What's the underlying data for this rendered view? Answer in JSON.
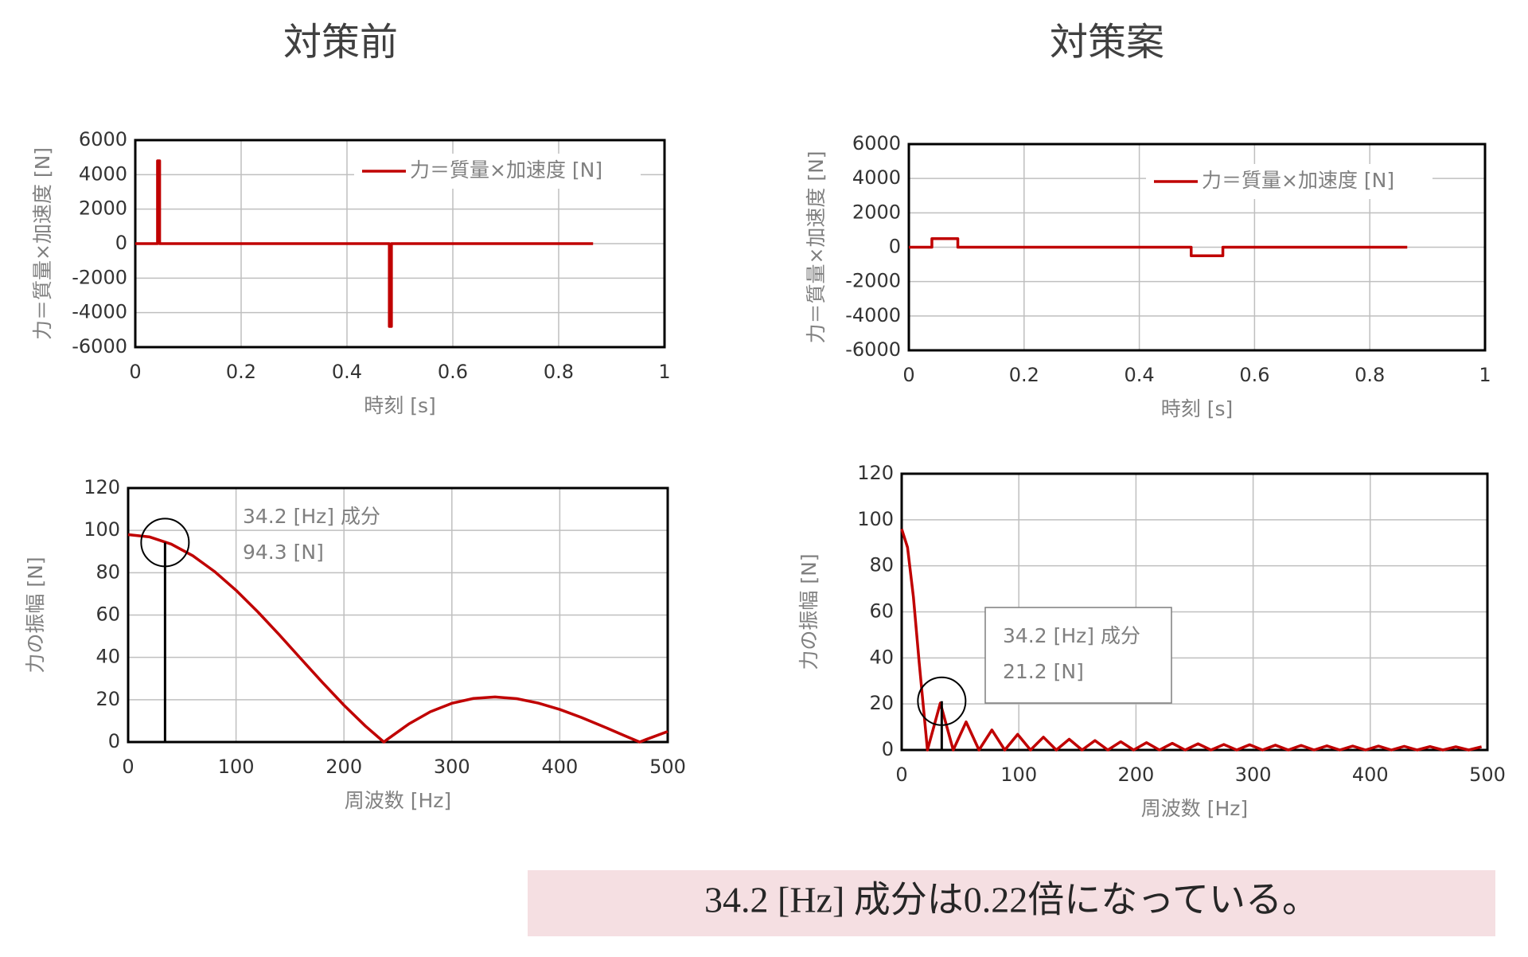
{
  "headings": [
    "対策前",
    "対策案"
  ],
  "note": "34.2 [Hz] 成分は0.22倍になっている。",
  "chart_data": [
    {
      "type": "line",
      "xlabel": "時刻 [s]",
      "ylabel": "力＝質量×加速度 [N]",
      "xlim": [
        0,
        1
      ],
      "xticks": [
        0,
        0.2,
        0.4,
        0.6,
        0.8,
        1
      ],
      "ylim": [
        -6000,
        6000
      ],
      "yticks": [
        -6000,
        -4000,
        -2000,
        0,
        2000,
        4000,
        6000
      ],
      "grid": true,
      "legend": "upper right",
      "x": [
        0,
        0.042,
        0.042,
        0.046,
        0.046,
        0.48,
        0.48,
        0.484,
        0.484,
        0.865
      ],
      "series": [
        {
          "name": "力＝質量×加速度 [N]",
          "color": "#c00000",
          "values": [
            0,
            0,
            4800,
            4800,
            0,
            0,
            -4800,
            -4800,
            0,
            0
          ]
        }
      ]
    },
    {
      "type": "line",
      "xlabel": "時刻 [s]",
      "ylabel": "力＝質量×加速度 [N]",
      "xlim": [
        0,
        1
      ],
      "xticks": [
        0,
        0.2,
        0.4,
        0.6,
        0.8,
        1
      ],
      "ylim": [
        -6000,
        6000
      ],
      "yticks": [
        -6000,
        -4000,
        -2000,
        0,
        2000,
        4000,
        6000
      ],
      "grid": true,
      "legend": "upper right",
      "x": [
        0,
        0.04,
        0.04,
        0.085,
        0.085,
        0.49,
        0.49,
        0.545,
        0.545,
        0.865
      ],
      "series": [
        {
          "name": "力＝質量×加速度 [N]",
          "color": "#c00000",
          "values": [
            0,
            0,
            500,
            500,
            0,
            0,
            -500,
            -500,
            0,
            0
          ]
        }
      ]
    },
    {
      "type": "line",
      "xlabel": "周波数 [Hz]",
      "ylabel": "力の振幅 [N]",
      "xlim": [
        0,
        500
      ],
      "xticks": [
        0,
        100,
        200,
        300,
        400,
        500
      ],
      "ylim": [
        0,
        120
      ],
      "yticks": [
        0,
        20,
        40,
        60,
        80,
        100,
        120
      ],
      "grid": true,
      "x": [
        0,
        20,
        40,
        60,
        80,
        100,
        120,
        140,
        160,
        180,
        200,
        220,
        237,
        240,
        260,
        280,
        300,
        320,
        340,
        360,
        380,
        400,
        420,
        440,
        460,
        474,
        480,
        500
      ],
      "series": [
        {
          "color": "#c00000",
          "values": [
            98,
            96.9,
            93.5,
            88.0,
            80.6,
            71.7,
            61.6,
            50.7,
            39.4,
            28.2,
            17.4,
            7.5,
            0,
            1.2,
            8.5,
            14.3,
            18.3,
            20.6,
            21.3,
            20.5,
            18.4,
            15.4,
            11.6,
            7.4,
            3.0,
            0,
            1.2,
            5.0
          ]
        }
      ],
      "highlight": {
        "x": 34.2,
        "value": 94.3
      },
      "annotations": [
        "34.2 [Hz] 成分",
        "94.3 [N]"
      ]
    },
    {
      "type": "line",
      "xlabel": "周波数 [Hz]",
      "ylabel": "力の振幅 [N]",
      "xlim": [
        0,
        500
      ],
      "xticks": [
        0,
        100,
        200,
        300,
        400,
        500
      ],
      "ylim": [
        0,
        120
      ],
      "yticks": [
        0,
        20,
        40,
        60,
        80,
        100,
        120
      ],
      "grid": true,
      "x": [
        0,
        5,
        10,
        15,
        22,
        33,
        44,
        55,
        66,
        77,
        88,
        99,
        110,
        121,
        132,
        143,
        154,
        165,
        176,
        187,
        198,
        209,
        220,
        231,
        242,
        253,
        264,
        275,
        286,
        297,
        308,
        319,
        330,
        341,
        352,
        363,
        374,
        385,
        396,
        407,
        418,
        429,
        440,
        451,
        462,
        473,
        484,
        495
      ],
      "series": [
        {
          "color": "#c00000",
          "values": [
            96,
            88,
            66.5,
            37.7,
            0,
            20.4,
            0,
            12.2,
            0,
            8.7,
            0,
            6.8,
            0,
            5.6,
            0,
            4.7,
            0,
            4.1,
            0,
            3.6,
            0,
            3.2,
            0,
            2.9,
            0,
            2.7,
            0,
            2.4,
            0,
            2.3,
            0,
            2.1,
            0,
            2.0,
            0,
            1.8,
            0,
            1.7,
            0,
            1.7,
            0,
            1.6,
            0,
            1.5,
            0,
            1.4,
            0,
            1.4
          ]
        }
      ],
      "highlight": {
        "x": 34.2,
        "value": 21.2
      },
      "annotations": [
        "34.2 [Hz] 成分",
        "21.2 [N]"
      ]
    }
  ]
}
